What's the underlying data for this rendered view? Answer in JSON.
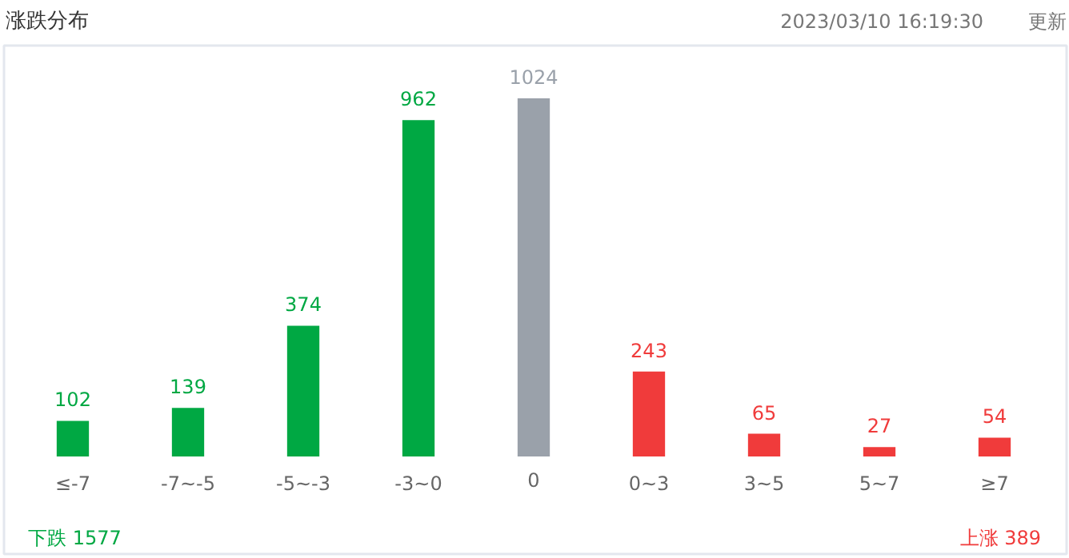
{
  "chart_data": {
    "type": "bar",
    "title": "涨跌分布",
    "subtitle": "2023/03/10 16:19:30",
    "categories": [
      "≤-7",
      "-7~-5",
      "-5~-3",
      "-3~0",
      "0",
      "0~3",
      "3~5",
      "5~7",
      "≥7"
    ],
    "values": [
      102,
      139,
      374,
      962,
      1024,
      243,
      65,
      27,
      54
    ],
    "colors": [
      "#00a843",
      "#00a843",
      "#00a843",
      "#00a843",
      "#9aa1aa",
      "#f03b3b",
      "#f03b3b",
      "#f03b3b",
      "#f03b3b"
    ],
    "data_labels": true,
    "annotations": [
      "更新",
      "下跌 1577",
      "上涨 389"
    ]
  }
}
